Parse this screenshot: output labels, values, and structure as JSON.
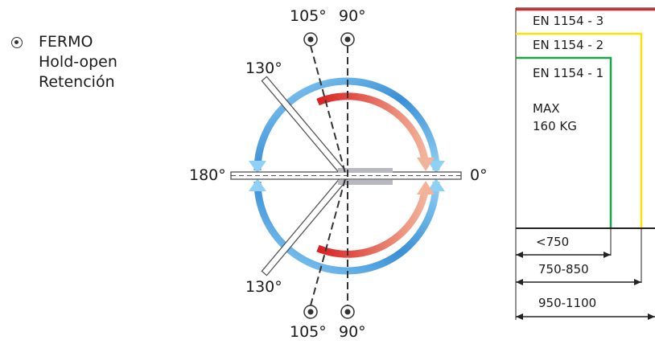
{
  "legend": {
    "line1": "FERMO",
    "line2": "Hold-open",
    "line3": "Retención"
  },
  "angles": {
    "top_105": "105°",
    "top_90": "90°",
    "upper_130": "130°",
    "left_180": "180°",
    "right_0": "0°",
    "lower_130": "130°",
    "bottom_105": "105°",
    "bottom_90": "90°"
  },
  "standards": {
    "en3": "EN 1154 - 3",
    "en2": "EN 1154 - 2",
    "en1": "EN 1154 - 1",
    "max_line1": "MAX",
    "max_line2": "160 KG",
    "width1": "<750",
    "width2": "750-850",
    "width3": "950-1100"
  },
  "colors": {
    "en3": "#e31e24",
    "en2": "#ffe000",
    "en1": "#1aa34a",
    "arc_blue": "#3a8fd6",
    "arc_light_blue": "#8fd0f5",
    "arc_red": "#d92020",
    "arc_salmon": "#f3b39a"
  }
}
